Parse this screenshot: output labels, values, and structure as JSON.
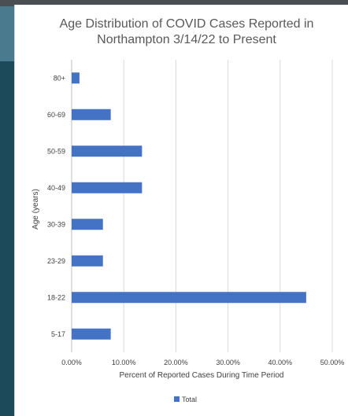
{
  "chart_data": {
    "type": "bar",
    "orientation": "horizontal",
    "title_lines": [
      "Age Distribution of COVID Cases Reported in",
      "Northampton 3/14/22 to Present"
    ],
    "xlabel": "Percent of Reported Cases During Time Period",
    "ylabel": "Age (years)",
    "categories": [
      "80+",
      "60-69",
      "50-59",
      "40-49",
      "30-39",
      "23-29",
      "18-22",
      "5-17"
    ],
    "series": [
      {
        "name": "Total",
        "values": [
          1.5,
          7.5,
          13.5,
          13.5,
          6.0,
          6.0,
          45.0,
          7.5
        ]
      }
    ],
    "xlim": [
      0,
      50
    ],
    "x_ticks": [
      "0.00%",
      "10.00%",
      "20.00%",
      "30.00%",
      "40.00%",
      "50.00%"
    ],
    "grid": true,
    "legend_position": "bottom",
    "bar_color": "#4472c4"
  }
}
